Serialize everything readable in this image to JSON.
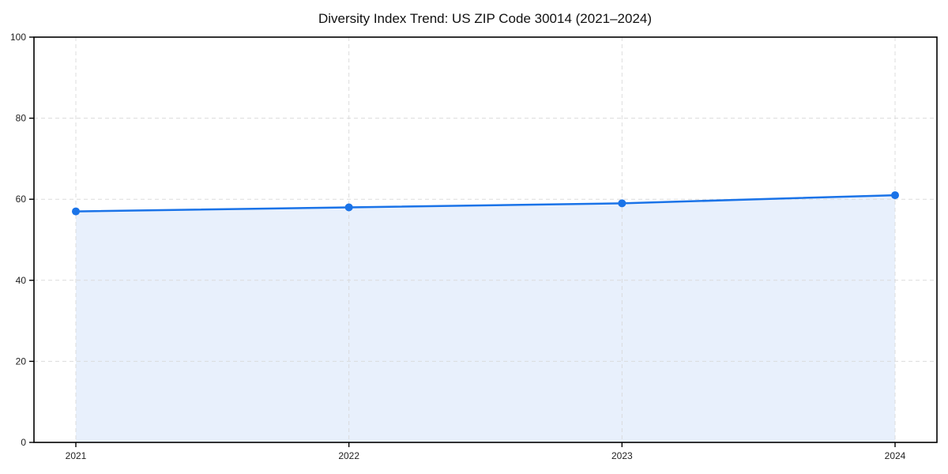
{
  "chart_data": {
    "type": "line",
    "title": "Diversity Index Trend: US ZIP Code 30014 (2021–2024)",
    "categories": [
      "2021",
      "2022",
      "2023",
      "2024"
    ],
    "series": [
      {
        "name": "Diversity Index",
        "values": [
          57,
          58,
          59,
          61
        ]
      }
    ],
    "xlabel": "",
    "ylabel": "",
    "ylim": [
      0,
      100
    ],
    "yticks": [
      0,
      20,
      40,
      60,
      80,
      100
    ],
    "grid": true,
    "grid_style": "dashed",
    "legend": false,
    "area_fill": true,
    "marker": "circle",
    "colors": {
      "line": "#1a73e8",
      "marker": "#1a73e8",
      "fill": "#e8f0fc",
      "grid": "#d9d9d9",
      "spine": "#000000",
      "tick": "#000000",
      "tick_label": "#222222",
      "title": "#111111",
      "background": "#ffffff"
    }
  }
}
